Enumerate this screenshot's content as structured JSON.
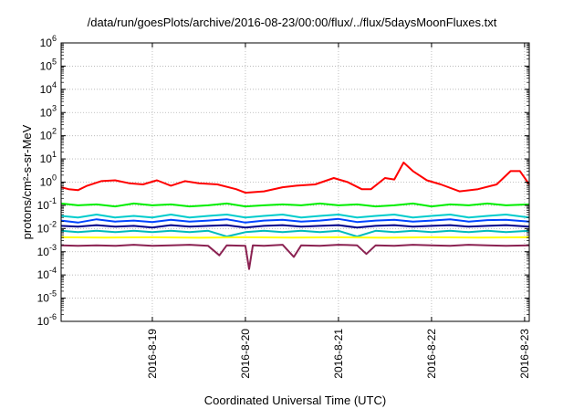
{
  "chart_data": {
    "type": "line",
    "title": "/data/run/goesPlots/archive/2016-08-23/00:00/flux/../flux/5daysMoonFluxes.txt",
    "xlabel": "Coordinated Universal Time (UTC)",
    "ylabel": "protons/cm²-s-sr-MeV",
    "y_scale": "log",
    "ylim": [
      1e-06,
      1000000.0
    ],
    "xlim": [
      -0.98,
      4.05
    ],
    "x_ticks": [
      {
        "value": 0,
        "label": "2016-8-19"
      },
      {
        "value": 1,
        "label": "2016-8-20"
      },
      {
        "value": 2,
        "label": "2016-8-21"
      },
      {
        "value": 3,
        "label": "2016-8-22"
      },
      {
        "value": 4,
        "label": "2016-8-23"
      }
    ],
    "y_ticks": [
      {
        "value": 1e-06,
        "base": "10",
        "exp": "-6"
      },
      {
        "value": 1e-05,
        "base": "10",
        "exp": "-5"
      },
      {
        "value": 0.0001,
        "base": "10",
        "exp": "-4"
      },
      {
        "value": 0.001,
        "base": "10",
        "exp": "-3"
      },
      {
        "value": 0.01,
        "base": "10",
        "exp": "-2"
      },
      {
        "value": 0.1,
        "base": "10",
        "exp": "-1"
      },
      {
        "value": 1,
        "base": "10",
        "exp": "0"
      },
      {
        "value": 10,
        "base": "10",
        "exp": "1"
      },
      {
        "value": 100,
        "base": "10",
        "exp": "2"
      },
      {
        "value": 1000,
        "base": "10",
        "exp": "3"
      },
      {
        "value": 10000,
        "base": "10",
        "exp": "4"
      },
      {
        "value": 100000,
        "base": "10",
        "exp": "5"
      },
      {
        "value": 1000000,
        "base": "10",
        "exp": "6"
      }
    ],
    "grid": true,
    "series": [
      {
        "color": "#ff0000",
        "x": [
          -0.98,
          -0.9,
          -0.8,
          -0.7,
          -0.55,
          -0.4,
          -0.25,
          -0.1,
          0.05,
          0.2,
          0.35,
          0.5,
          0.7,
          0.9,
          1.0,
          1.2,
          1.4,
          1.55,
          1.75,
          1.95,
          2.1,
          2.25,
          2.35,
          2.5,
          2.6,
          2.7,
          2.8,
          2.95,
          3.1,
          3.3,
          3.5,
          3.7,
          3.85,
          3.95,
          4.05
        ],
        "values": [
          0.6,
          0.5,
          0.45,
          0.7,
          1.1,
          1.2,
          0.9,
          0.8,
          1.2,
          0.7,
          1.1,
          0.9,
          0.8,
          0.5,
          0.35,
          0.4,
          0.6,
          0.7,
          0.8,
          1.5,
          1.0,
          0.5,
          0.5,
          1.5,
          1.3,
          7.0,
          3.0,
          1.2,
          0.8,
          0.4,
          0.5,
          0.8,
          3.0,
          3.0,
          0.8
        ]
      },
      {
        "color": "#00ee00",
        "x": [
          -0.98,
          -0.8,
          -0.6,
          -0.4,
          -0.2,
          0.0,
          0.2,
          0.4,
          0.6,
          0.8,
          1.0,
          1.2,
          1.4,
          1.6,
          1.8,
          2.0,
          2.2,
          2.4,
          2.6,
          2.8,
          3.0,
          3.2,
          3.4,
          3.6,
          3.8,
          4.05
        ],
        "values": [
          0.12,
          0.1,
          0.11,
          0.09,
          0.12,
          0.1,
          0.11,
          0.09,
          0.1,
          0.12,
          0.09,
          0.1,
          0.11,
          0.1,
          0.12,
          0.1,
          0.11,
          0.09,
          0.1,
          0.12,
          0.09,
          0.11,
          0.1,
          0.12,
          0.1,
          0.11
        ]
      },
      {
        "color": "#00cccc",
        "x": [
          -0.98,
          -0.8,
          -0.6,
          -0.4,
          -0.2,
          0.0,
          0.2,
          0.4,
          0.6,
          0.8,
          1.0,
          1.2,
          1.4,
          1.6,
          1.8,
          2.0,
          2.2,
          2.4,
          2.6,
          2.8,
          3.0,
          3.2,
          3.4,
          3.6,
          3.8,
          4.05
        ],
        "values": [
          0.035,
          0.03,
          0.04,
          0.03,
          0.035,
          0.03,
          0.04,
          0.03,
          0.035,
          0.04,
          0.03,
          0.035,
          0.04,
          0.03,
          0.035,
          0.04,
          0.03,
          0.035,
          0.04,
          0.03,
          0.035,
          0.04,
          0.03,
          0.035,
          0.04,
          0.03
        ]
      },
      {
        "color": "#0044ff",
        "x": [
          -0.98,
          -0.8,
          -0.6,
          -0.4,
          -0.2,
          0.0,
          0.2,
          0.4,
          0.6,
          0.8,
          1.0,
          1.2,
          1.4,
          1.6,
          1.8,
          2.0,
          2.2,
          2.4,
          2.6,
          2.8,
          3.0,
          3.2,
          3.4,
          3.6,
          3.8,
          4.05
        ],
        "values": [
          0.022,
          0.018,
          0.025,
          0.02,
          0.022,
          0.019,
          0.024,
          0.02,
          0.022,
          0.025,
          0.018,
          0.022,
          0.024,
          0.02,
          0.022,
          0.026,
          0.019,
          0.022,
          0.024,
          0.02,
          0.022,
          0.025,
          0.02,
          0.023,
          0.024,
          0.02
        ]
      },
      {
        "color": "#00008b",
        "x": [
          -0.98,
          -0.8,
          -0.6,
          -0.4,
          -0.2,
          0.0,
          0.2,
          0.4,
          0.6,
          0.8,
          1.0,
          1.2,
          1.4,
          1.6,
          1.8,
          2.0,
          2.2,
          2.4,
          2.6,
          2.8,
          3.0,
          3.2,
          3.4,
          3.6,
          3.8,
          4.05
        ],
        "values": [
          0.013,
          0.012,
          0.014,
          0.012,
          0.013,
          0.011,
          0.014,
          0.012,
          0.013,
          0.014,
          0.011,
          0.013,
          0.014,
          0.012,
          0.013,
          0.014,
          0.011,
          0.013,
          0.014,
          0.012,
          0.013,
          0.014,
          0.012,
          0.013,
          0.014,
          0.012
        ]
      },
      {
        "color": "#00bbbb",
        "x": [
          -0.98,
          -0.8,
          -0.6,
          -0.4,
          -0.2,
          0.0,
          0.2,
          0.4,
          0.6,
          0.8,
          1.0,
          1.2,
          1.4,
          1.6,
          1.8,
          2.0,
          2.2,
          2.4,
          2.6,
          2.8,
          3.0,
          3.2,
          3.4,
          3.6,
          3.8,
          4.05
        ],
        "values": [
          0.008,
          0.007,
          0.008,
          0.007,
          0.008,
          0.007,
          0.008,
          0.007,
          0.008,
          0.0045,
          0.007,
          0.008,
          0.007,
          0.008,
          0.007,
          0.008,
          0.0045,
          0.008,
          0.007,
          0.008,
          0.007,
          0.008,
          0.007,
          0.008,
          0.007,
          0.008
        ]
      },
      {
        "color": "#ffff00",
        "x": [
          -0.98,
          -0.5,
          0.0,
          0.5,
          1.0,
          1.5,
          2.0,
          2.5,
          3.0,
          3.5,
          4.05
        ],
        "values": [
          0.0042,
          0.0041,
          0.0042,
          0.004,
          0.0042,
          0.0041,
          0.0042,
          0.004,
          0.0042,
          0.0041,
          0.0042
        ]
      },
      {
        "color": "#8b2252",
        "x": [
          -0.98,
          -0.8,
          -0.6,
          -0.4,
          -0.2,
          0.0,
          0.2,
          0.4,
          0.6,
          0.72,
          0.8,
          1.0,
          1.04,
          1.08,
          1.2,
          1.4,
          1.52,
          1.6,
          1.8,
          2.0,
          2.2,
          2.3,
          2.4,
          2.6,
          2.8,
          3.0,
          3.2,
          3.4,
          3.6,
          3.8,
          4.05
        ],
        "values": [
          0.0019,
          0.0018,
          0.0019,
          0.0018,
          0.002,
          0.0018,
          0.0019,
          0.002,
          0.0018,
          0.0007,
          0.0019,
          0.0018,
          0.00018,
          0.0019,
          0.0018,
          0.002,
          0.0006,
          0.0019,
          0.0018,
          0.002,
          0.0019,
          0.0008,
          0.0019,
          0.0018,
          0.002,
          0.0019,
          0.0018,
          0.002,
          0.0019,
          0.0018,
          0.0019
        ]
      }
    ]
  }
}
